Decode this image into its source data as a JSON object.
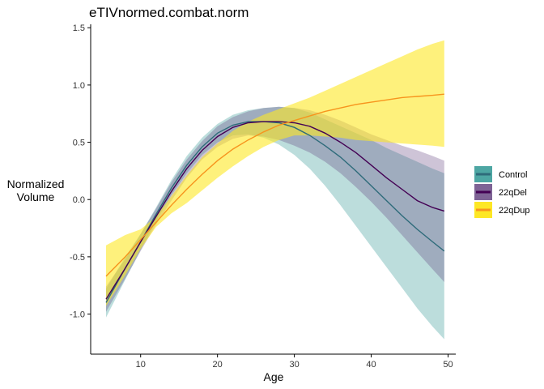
{
  "chart_data": {
    "type": "line",
    "title": "eTIVnormed.combat.norm",
    "xlabel": "Age",
    "ylabel_lines": [
      "Normalized",
      "Volume"
    ],
    "xlim": [
      3.5,
      51
    ],
    "ylim": [
      -1.35,
      1.53
    ],
    "xticks": [
      10,
      20,
      30,
      40,
      50
    ],
    "yticks": [
      -1.0,
      -0.5,
      0.0,
      0.5,
      1.0,
      1.5
    ],
    "ytick_labels": [
      "-1.0",
      "-0.5",
      "0.0",
      "0.5",
      "1.0",
      "1.5"
    ],
    "grid": false,
    "legend_position": "right",
    "x": [
      5.5,
      8,
      10,
      12,
      14,
      16,
      18,
      20,
      22,
      24,
      26,
      28,
      30,
      32,
      34,
      36,
      38,
      40,
      42,
      44,
      46,
      48,
      49.5
    ],
    "series": [
      {
        "name": "Control",
        "color": "#21908C",
        "fill_color": "#21908C",
        "fill_opacity": 0.3,
        "line_color": "#2E6B7A",
        "y": [
          -0.9,
          -0.6,
          -0.37,
          -0.13,
          0.1,
          0.3,
          0.46,
          0.58,
          0.65,
          0.68,
          0.68,
          0.67,
          0.63,
          0.56,
          0.47,
          0.37,
          0.25,
          0.12,
          -0.01,
          -0.14,
          -0.26,
          -0.37,
          -0.45
        ],
        "lower": [
          -1.03,
          -0.7,
          -0.44,
          -0.19,
          0.04,
          0.23,
          0.39,
          0.5,
          0.56,
          0.57,
          0.54,
          0.48,
          0.39,
          0.27,
          0.12,
          -0.05,
          -0.23,
          -0.41,
          -0.59,
          -0.77,
          -0.95,
          -1.11,
          -1.22
        ],
        "upper": [
          -0.78,
          -0.5,
          -0.3,
          -0.07,
          0.17,
          0.38,
          0.54,
          0.66,
          0.74,
          0.78,
          0.8,
          0.81,
          0.8,
          0.76,
          0.7,
          0.64,
          0.58,
          0.52,
          0.45,
          0.39,
          0.33,
          0.27,
          0.23
        ]
      },
      {
        "name": "22qDel",
        "color": "#440154",
        "fill_color": "#5E3C7A",
        "fill_opacity": 0.3,
        "line_color": "#440154",
        "y": [
          -0.87,
          -0.6,
          -0.37,
          -0.15,
          0.07,
          0.27,
          0.43,
          0.55,
          0.63,
          0.67,
          0.68,
          0.68,
          0.67,
          0.64,
          0.58,
          0.5,
          0.41,
          0.3,
          0.19,
          0.09,
          -0.01,
          -0.07,
          -0.1
        ],
        "lower": [
          -0.98,
          -0.69,
          -0.45,
          -0.22,
          -0.01,
          0.19,
          0.35,
          0.46,
          0.53,
          0.56,
          0.55,
          0.52,
          0.47,
          0.41,
          0.33,
          0.23,
          0.11,
          -0.02,
          -0.16,
          -0.31,
          -0.46,
          -0.61,
          -0.72
        ],
        "upper": [
          -0.76,
          -0.52,
          -0.3,
          -0.08,
          0.15,
          0.35,
          0.51,
          0.64,
          0.72,
          0.77,
          0.8,
          0.81,
          0.8,
          0.78,
          0.74,
          0.69,
          0.63,
          0.57,
          0.52,
          0.47,
          0.43,
          0.38,
          0.34
        ]
      },
      {
        "name": "22qDup",
        "color": "#FDE725",
        "fill_color": "#FDE725",
        "fill_opacity": 0.6,
        "line_color": "#F7941D",
        "y": [
          -0.67,
          -0.5,
          -0.35,
          -0.2,
          -0.05,
          0.09,
          0.22,
          0.34,
          0.44,
          0.52,
          0.59,
          0.65,
          0.69,
          0.73,
          0.77,
          0.8,
          0.83,
          0.85,
          0.87,
          0.89,
          0.9,
          0.91,
          0.92
        ],
        "lower": [
          -0.93,
          -0.66,
          -0.43,
          -0.24,
          -0.12,
          -0.03,
          0.08,
          0.19,
          0.29,
          0.38,
          0.46,
          0.52,
          0.56,
          0.56,
          0.55,
          0.54,
          0.52,
          0.51,
          0.5,
          0.49,
          0.48,
          0.47,
          0.46
        ],
        "upper": [
          -0.4,
          -0.31,
          -0.26,
          -0.15,
          0.03,
          0.21,
          0.37,
          0.49,
          0.6,
          0.68,
          0.74,
          0.79,
          0.84,
          0.89,
          0.95,
          1.01,
          1.07,
          1.13,
          1.19,
          1.25,
          1.31,
          1.36,
          1.39
        ]
      }
    ]
  }
}
